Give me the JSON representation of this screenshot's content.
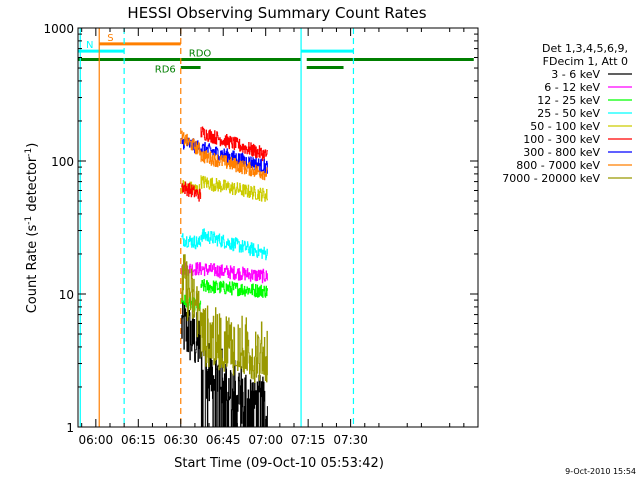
{
  "chart_data": {
    "type": "line",
    "title": "HESSI Observing Summary Count Rates",
    "xlabel": "Start Time (09-Oct-10 05:53:42)",
    "ylabel_main": "Count Rate (s",
    "ylabel_sup1": "-1",
    "ylabel_mid": " detector",
    "ylabel_sup2": "-1",
    "ylabel_end": ")",
    "y_scale": "log",
    "ylim": [
      1,
      1000
    ],
    "xlim_min": [
      353.7,
      495
    ],
    "x_ticks": [
      {
        "min": 360,
        "label": "06:00"
      },
      {
        "min": 375,
        "label": "06:15"
      },
      {
        "min": 390,
        "label": "06:30"
      },
      {
        "min": 405,
        "label": "06:45"
      },
      {
        "min": 420,
        "label": "07:00"
      },
      {
        "min": 435,
        "label": "07:15"
      },
      {
        "min": 450,
        "label": "07:30"
      }
    ],
    "y_ticks": [
      {
        "value": 1,
        "label": "1"
      },
      {
        "value": 10,
        "label": "10"
      },
      {
        "value": 100,
        "label": "100"
      },
      {
        "value": 1000,
        "label": "1000"
      }
    ],
    "legend": {
      "position": "right",
      "header": [
        "Det 1,3,4,5,6,9,",
        "FDecim 1, Att 0"
      ],
      "entries": [
        {
          "label": "3 - 6 keV",
          "color": "#000000"
        },
        {
          "label": "6 - 12 keV",
          "color": "#ff00ff"
        },
        {
          "label": "12 - 25 keV",
          "color": "#00ff00"
        },
        {
          "label": "25 - 50 keV",
          "color": "#00ffff"
        },
        {
          "label": "50 - 100 keV",
          "color": "#cccc00"
        },
        {
          "label": "100 - 300 keV",
          "color": "#ff0000"
        },
        {
          "label": "300 - 800 keV",
          "color": "#0000ff"
        },
        {
          "label": "800 - 7000 keV",
          "color": "#ff7f00"
        },
        {
          "label": "7000 - 20000 keV",
          "color": "#999900"
        }
      ]
    },
    "series": [
      {
        "band": "3 - 6 keV",
        "color": "#000000",
        "seg1": {
          "x": [
            390.2,
            397
          ],
          "y": [
            5.8,
            4.0
          ]
        },
        "seg2": {
          "x": [
            397,
            420.6
          ],
          "y": [
            3.0,
            1.3
          ]
        }
      },
      {
        "band": "6 - 12 keV",
        "color": "#ff00ff",
        "seg1": {
          "x": [
            390.2,
            397
          ],
          "y": [
            15.5,
            15.5
          ]
        },
        "seg2": {
          "x": [
            397,
            420.6
          ],
          "y": [
            15.5,
            13.5
          ]
        }
      },
      {
        "band": "12 - 25 keV",
        "color": "#00ff00",
        "seg1": {
          "x": [
            390.2,
            397
          ],
          "y": [
            9.0,
            8.0
          ]
        },
        "seg2": {
          "x": [
            397,
            420.6
          ],
          "y": [
            11.5,
            10.5
          ]
        }
      },
      {
        "band": "25 - 50 keV",
        "color": "#00ffff",
        "seg1": {
          "x": [
            390.2,
            397
          ],
          "y": [
            26,
            24
          ]
        },
        "seg2": {
          "x": [
            397,
            420.6
          ],
          "y": [
            28,
            20
          ]
        }
      },
      {
        "band": "50 - 100 keV",
        "color": "#cccc00",
        "seg1": {
          "x": [
            390.2,
            397
          ],
          "y": [
            65,
            60
          ]
        },
        "seg2": {
          "x": [
            397,
            420.6
          ],
          "y": [
            70,
            55
          ]
        }
      },
      {
        "band": "100 - 300 keV",
        "color": "#ff0000",
        "seg1": {
          "x": [
            390.2,
            397
          ],
          "y": [
            65,
            55
          ]
        },
        "seg2": {
          "x": [
            397,
            420.6
          ],
          "y": [
            165,
            110
          ]
        }
      },
      {
        "band": "300 - 800 keV",
        "color": "#0000ff",
        "seg1": {
          "x": [
            390.2,
            397
          ],
          "y": [
            140,
            125
          ]
        },
        "seg2": {
          "x": [
            397,
            420.6
          ],
          "y": [
            125,
            90
          ]
        }
      },
      {
        "band": "800 - 7000 keV",
        "color": "#ff7f00",
        "seg1": {
          "x": [
            390.2,
            397
          ],
          "y": [
            150,
            120
          ]
        },
        "seg2": {
          "x": [
            397,
            420.6
          ],
          "y": [
            110,
            80
          ]
        }
      },
      {
        "band": "7000 - 20000 keV",
        "color": "#999900",
        "seg1": {
          "x": [
            390.2,
            397
          ],
          "y": [
            13,
            7
          ]
        },
        "seg2": {
          "x": [
            397,
            420.6
          ],
          "y": [
            5.0,
            3.5
          ]
        }
      }
    ],
    "vertical_lines": [
      {
        "min": 354.5,
        "color": "#00ffff",
        "dashed": false
      },
      {
        "min": 361.2,
        "color": "#ff7f00",
        "dashed": false
      },
      {
        "min": 370.0,
        "color": "#00ffff",
        "dashed": true
      },
      {
        "min": 390.0,
        "color": "#ff7f00",
        "dashed": true
      },
      {
        "min": 432.5,
        "color": "#00ffff",
        "dashed": false
      },
      {
        "min": 451.0,
        "color": "#00ffff",
        "dashed": true
      }
    ],
    "flag_bars": [
      {
        "label": "S",
        "color": "#ff7f00",
        "y": 760,
        "x": [
          361.2,
          390.0
        ]
      },
      {
        "label": "N",
        "color": "#00ffff",
        "y": 670,
        "x": [
          353.7,
          370.0
        ]
      },
      {
        "label": "",
        "color": "#00ffff",
        "y": 670,
        "x": [
          432.5,
          451.0
        ]
      },
      {
        "label": "RDO",
        "color": "#007f00",
        "y": 580,
        "x": [
          353.7,
          432.5
        ]
      },
      {
        "label": "",
        "color": "#007f00",
        "y": 580,
        "x": [
          434.5,
          493.5
        ]
      },
      {
        "label": "RD6",
        "color": "#007f00",
        "y": 505,
        "x": [
          390.0,
          397.0
        ]
      },
      {
        "label": "",
        "color": "#007f00",
        "y": 505,
        "x": [
          434.5,
          447.5
        ]
      }
    ],
    "timestamp": "9-Oct-2010 15:54"
  }
}
